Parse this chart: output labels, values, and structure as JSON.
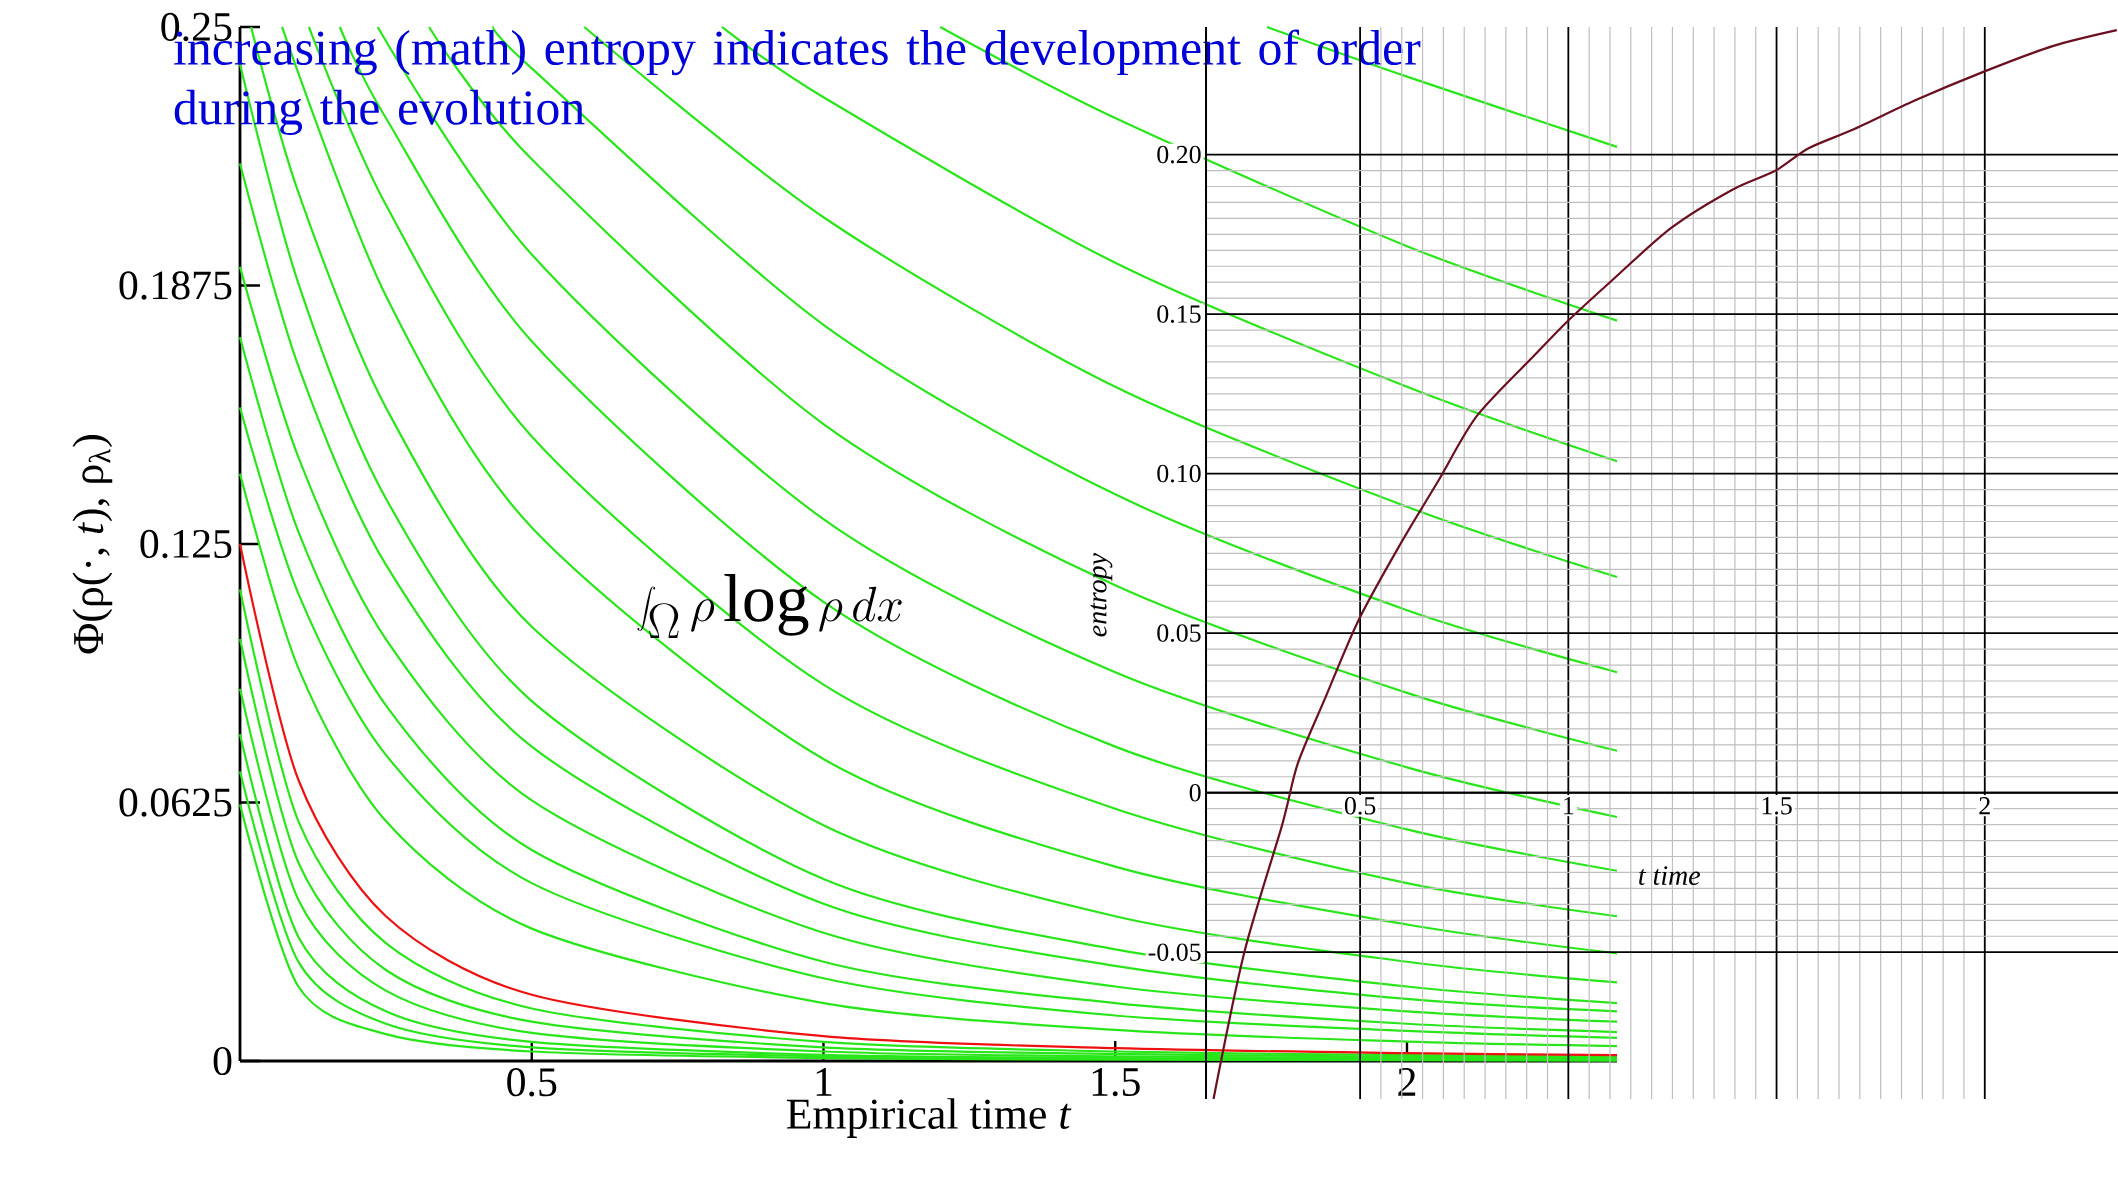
{
  "chart_data": [
    {
      "type": "line",
      "xlabel": "Empirical time *t*",
      "ylabel": "Φ(ρ(·, *t*), ρ$_{λ}$)",
      "annotations": [
        "increasing (math) entropy indicates the development of order during the evolution",
        "\\int_\\Omega \\rho \\log \\rho\\, dx"
      ],
      "xlim": [
        0,
        2.36
      ],
      "ylim": [
        0,
        0.25
      ],
      "xticks": [
        0.5,
        1,
        1.5,
        2
      ],
      "yticks": [
        0,
        0.0625,
        0.125,
        0.1875,
        0.25
      ],
      "series": [
        {
          "color": "#29e61a",
          "x": [
            1.76,
            2,
            2.36
          ],
          "values": [
            0.25,
            0.238,
            0.221
          ]
        },
        {
          "color": "#29e61a",
          "x": [
            1.2,
            1.5,
            2,
            2.36
          ],
          "values": [
            0.25,
            0.228,
            0.197,
            0.179
          ]
        },
        {
          "color": "#29e61a",
          "x": [
            0.826,
            1,
            1.5,
            2,
            2.36
          ],
          "values": [
            0.25,
            0.233,
            0.193,
            0.163,
            0.145
          ]
        },
        {
          "color": "#29e61a",
          "x": [
            0.59,
            1,
            1.5,
            2,
            2.36
          ],
          "values": [
            0.25,
            0.204,
            0.163,
            0.134,
            0.117
          ]
        },
        {
          "color": "#29e61a",
          "x": [
            0.435,
            0.5,
            1,
            1.5,
            2,
            2.36
          ],
          "values": [
            0.25,
            0.24,
            0.178,
            0.137,
            0.109,
            0.094
          ]
        },
        {
          "color": "#29e61a",
          "x": [
            0.324,
            0.5,
            1,
            1.5,
            2,
            2.36
          ],
          "values": [
            0.25,
            0.218,
            0.154,
            0.115,
            0.089,
            0.075
          ]
        },
        {
          "color": "#29e61a",
          "x": [
            0.236,
            0.5,
            1,
            1.5,
            2,
            2.36
          ],
          "values": [
            0.25,
            0.195,
            0.131,
            0.094,
            0.071,
            0.059
          ]
        },
        {
          "color": "#29e61a",
          "x": [
            0.171,
            0.25,
            0.5,
            1,
            1.5,
            2,
            2.36
          ],
          "values": [
            0.25,
            0.228,
            0.174,
            0.111,
            0.076,
            0.056,
            0.046
          ]
        },
        {
          "color": "#29e61a",
          "x": [
            0.118,
            0.25,
            0.5,
            1,
            1.5,
            2,
            2.36
          ],
          "values": [
            0.25,
            0.207,
            0.151,
            0.091,
            0.061,
            0.043,
            0.035
          ]
        },
        {
          "color": "#29e61a",
          "x": [
            0.072,
            0.25,
            0.5,
            1,
            1.5,
            2,
            2.36
          ],
          "values": [
            0.25,
            0.185,
            0.129,
            0.073,
            0.047,
            0.033,
            0.026
          ]
        },
        {
          "color": "#29e61a",
          "x": [
            0.019,
            0.1,
            0.25,
            0.5,
            1,
            1.5,
            2,
            2.36
          ],
          "values": [
            0.25,
            0.21,
            0.158,
            0.105,
            0.057,
            0.035,
            0.024,
            0.019
          ]
        },
        {
          "color": "#29e61a",
          "x": [
            0,
            0.1,
            0.25,
            0.5,
            1,
            1.5,
            2,
            2.36
          ],
          "values": [
            0.241,
            0.188,
            0.136,
            0.087,
            0.044,
            0.027,
            0.018,
            0.014
          ]
        },
        {
          "color": "#29e61a",
          "x": [
            0,
            0.1,
            0.25,
            0.5,
            1,
            1.5,
            2,
            2.36
          ],
          "values": [
            0.217,
            0.168,
            0.12,
            0.076,
            0.038,
            0.023,
            0.015,
            0.012
          ]
        },
        {
          "color": "#29e61a",
          "x": [
            0,
            0.1,
            0.25,
            0.5,
            1,
            1.5,
            2,
            2.36
          ],
          "values": [
            0.192,
            0.146,
            0.102,
            0.063,
            0.031,
            0.018,
            0.012,
            0.0095
          ]
        },
        {
          "color": "#29e61a",
          "x": [
            0,
            0.1,
            0.25,
            0.5,
            1,
            1.5,
            2,
            2.36
          ],
          "values": [
            0.175,
            0.128,
            0.086,
            0.051,
            0.024,
            0.014,
            0.009,
            0.007
          ]
        },
        {
          "color": "#29e61a",
          "x": [
            0,
            0.1,
            0.25,
            0.5,
            1,
            1.5,
            2,
            2.36
          ],
          "values": [
            0.158,
            0.113,
            0.074,
            0.043,
            0.02,
            0.011,
            0.0073,
            0.0056
          ]
        },
        {
          "color": "#29e61a",
          "x": [
            0,
            0.1,
            0.25,
            0.5,
            1,
            1.5,
            2,
            2.36
          ],
          "values": [
            0.142,
            0.095,
            0.058,
            0.032,
            0.014,
            0.0075,
            0.0047,
            0.0036
          ]
        },
        {
          "color": "#29e61a",
          "x": [
            0,
            0.1,
            0.25,
            0.5,
            1,
            1.5,
            2,
            2.36
          ],
          "values": [
            0.114,
            0.058,
            0.0285,
            0.0127,
            0.0046,
            0.0023,
            0.0014,
            0.001
          ]
        },
        {
          "color": "#29e61a",
          "x": [
            0,
            0.1,
            0.25,
            0.5,
            1,
            1.5,
            2,
            2.36
          ],
          "values": [
            0.102,
            0.048,
            0.022,
            0.0095,
            0.0033,
            0.0017,
            0.001,
            0.0007
          ]
        },
        {
          "color": "#29e61a",
          "x": [
            0,
            0.1,
            0.25,
            0.5,
            1,
            1.5,
            2,
            2.36
          ],
          "values": [
            0.09,
            0.039,
            0.017,
            0.0068,
            0.0023,
            0.0011,
            0.0007,
            0.0005
          ]
        },
        {
          "color": "#29e61a",
          "x": [
            0,
            0.1,
            0.25,
            0.5,
            1,
            1.5,
            2,
            2.36
          ],
          "values": [
            0.079,
            0.03,
            0.012,
            0.0046,
            0.0015,
            0.0007,
            0.0004,
            0.0003
          ]
        },
        {
          "color": "#29e61a",
          "x": [
            0,
            0.1,
            0.25,
            0.5,
            1,
            1.5,
            2,
            2.36
          ],
          "values": [
            0.07,
            0.024,
            0.009,
            0.0033,
            0.0011,
            0.0005,
            0.0003,
            0.0002
          ]
        },
        {
          "color": "#29e61a",
          "x": [
            0,
            0.1,
            0.25,
            0.5,
            1,
            1.5,
            2,
            2.36
          ],
          "values": [
            0.062,
            0.018,
            0.0065,
            0.0023,
            0.0007,
            0.0003,
            0.0002,
            0.0001
          ]
        },
        {
          "color": "#ee1111",
          "x": [
            0,
            0.1,
            0.25,
            0.5,
            1,
            1.5,
            2,
            2.36
          ],
          "values": [
            0.125,
            0.068,
            0.035,
            0.016,
            0.006,
            0.0031,
            0.0019,
            0.0014
          ]
        }
      ]
    },
    {
      "type": "line",
      "xlabel": "t time",
      "ylabel": "entropy",
      "xlim": [
        0.13,
        2.32
      ],
      "ylim": [
        -0.096,
        0.24
      ],
      "xticks": [
        0.5,
        1,
        1.5,
        2
      ],
      "yticks": [
        {
          "value": -0.05,
          "label": "-0.05"
        },
        0,
        0.05,
        {
          "value": 0.1,
          "label": "0.10"
        },
        0.15,
        {
          "value": 0.2,
          "label": "0.20"
        }
      ],
      "grid": true,
      "series": [
        {
          "color": "#6b1020",
          "x": [
            0.148,
            0.222,
            0.313,
            0.35,
            0.414,
            0.496,
            0.597,
            0.689,
            0.78,
            0.918,
            1.0,
            1.1,
            1.247,
            1.394,
            1.498,
            1.577,
            1.687,
            1.833,
            1.998,
            2.163,
            2.317
          ],
          "values": [
            -0.096,
            -0.05,
            -0.01,
            0.009,
            0.029,
            0.054,
            0.078,
            0.098,
            0.118,
            0.137,
            0.148,
            0.16,
            0.177,
            0.189,
            0.195,
            0.202,
            0.208,
            0.217,
            0.226,
            0.234,
            0.239
          ]
        }
      ]
    }
  ]
}
